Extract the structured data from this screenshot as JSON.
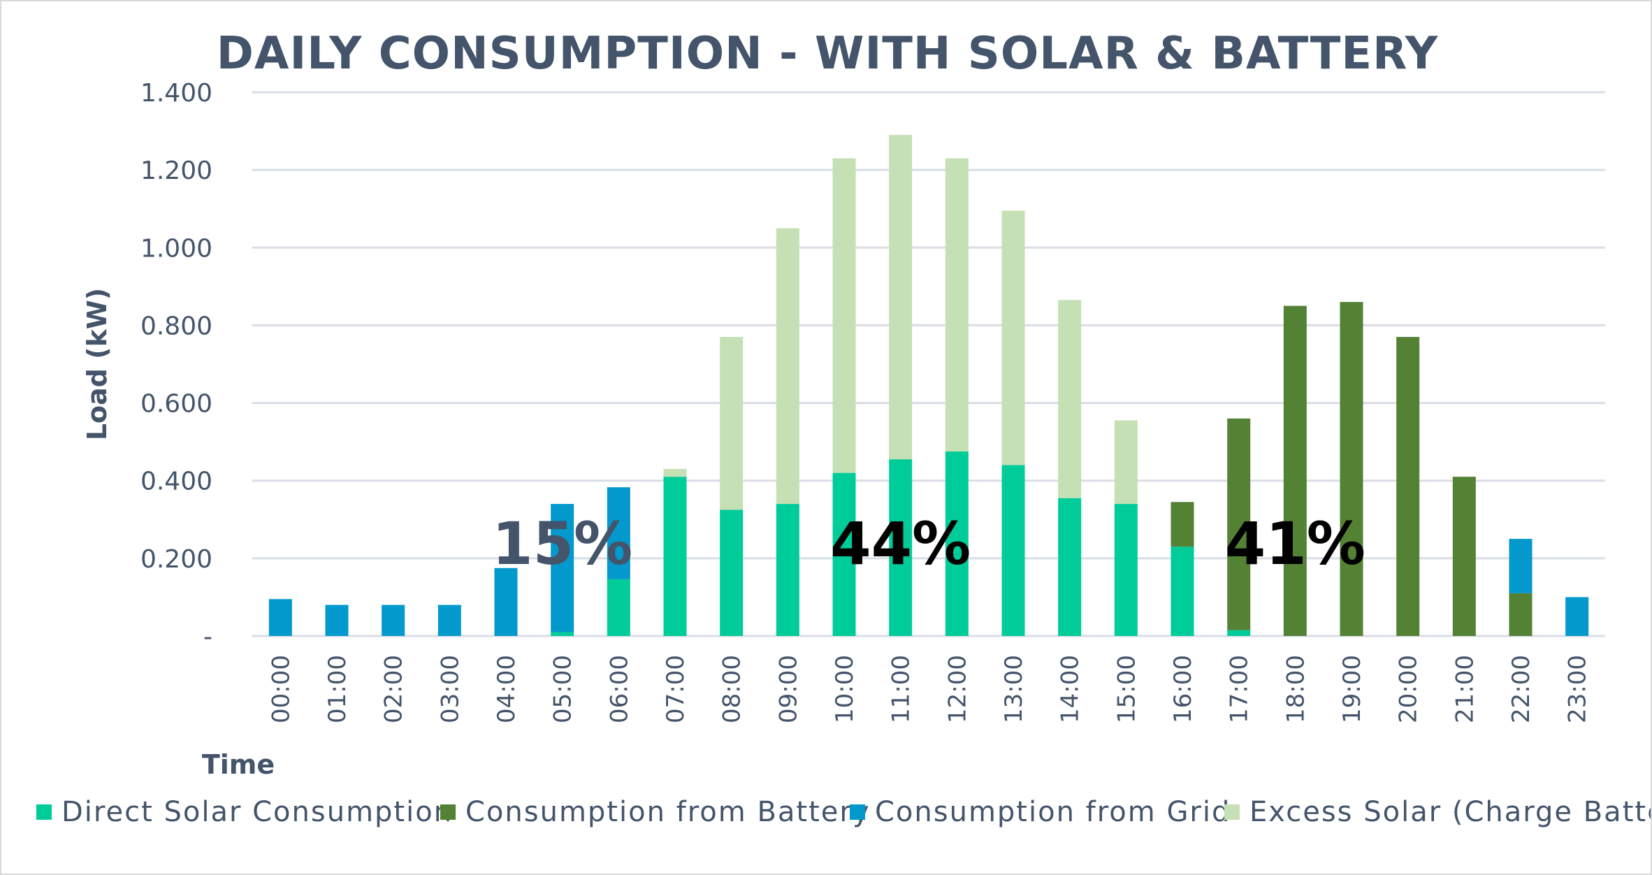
{
  "chart_data": {
    "type": "bar",
    "stacked": true,
    "title": "DAILY CONSUMPTION  - WITH SOLAR & BATTERY",
    "xlabel": "Time",
    "ylabel": "Load (kW)",
    "ylim": [
      0,
      1.4
    ],
    "yticks": [
      {
        "value": 0,
        "label": "-"
      },
      {
        "value": 0.2,
        "label": "0.200"
      },
      {
        "value": 0.4,
        "label": "0.400"
      },
      {
        "value": 0.6,
        "label": "0.600"
      },
      {
        "value": 0.8,
        "label": "0.800"
      },
      {
        "value": 1.0,
        "label": "1.000"
      },
      {
        "value": 1.2,
        "label": "1.200"
      },
      {
        "value": 1.4,
        "label": "1.400"
      }
    ],
    "grid": true,
    "legend_position": "bottom",
    "categories": [
      "00:00",
      "01:00",
      "02:00",
      "03:00",
      "04:00",
      "05:00",
      "06:00",
      "07:00",
      "08:00",
      "09:00",
      "10:00",
      "11:00",
      "12:00",
      "13:00",
      "14:00",
      "15:00",
      "16:00",
      "17:00",
      "18:00",
      "19:00",
      "20:00",
      "21:00",
      "22:00",
      "23:00"
    ],
    "series": [
      {
        "name": "Direct Solar Consumption",
        "color": "#00cc99",
        "values": [
          0,
          0,
          0,
          0,
          0,
          0.01,
          0.146,
          0.41,
          0.325,
          0.34,
          0.42,
          0.455,
          0.475,
          0.44,
          0.355,
          0.34,
          0.23,
          0.015,
          0,
          0,
          0,
          0,
          0,
          0
        ]
      },
      {
        "name": "Consumption from Battery",
        "color": "#548235",
        "values": [
          0,
          0,
          0,
          0,
          0,
          0,
          0,
          0,
          0,
          0,
          0,
          0,
          0,
          0,
          0,
          0,
          0.115,
          0.545,
          0.85,
          0.86,
          0.77,
          0.41,
          0.11,
          0
        ]
      },
      {
        "name": "Consumption from Grid",
        "color": "#0399cd",
        "values": [
          0.095,
          0.08,
          0.08,
          0.08,
          0.175,
          0.33,
          0.237,
          0,
          0,
          0,
          0,
          0,
          0,
          0,
          0,
          0,
          0,
          0,
          0,
          0,
          0,
          0,
          0.14,
          0.1
        ]
      },
      {
        "name": "Excess Solar (Charge Battery)",
        "color": "#c5e0b4",
        "values": [
          0,
          0,
          0,
          0,
          0,
          0,
          0,
          0.02,
          0.445,
          0.71,
          0.81,
          0.835,
          0.755,
          0.655,
          0.51,
          0.215,
          0,
          0,
          0,
          0,
          0,
          0,
          0,
          0
        ]
      }
    ],
    "annotations": [
      {
        "text": "15%",
        "color": "#44546a",
        "at_category": "05:00"
      },
      {
        "text": "44%",
        "color": "#000000",
        "at_category": "11:00"
      },
      {
        "text": "41%",
        "color": "#000000",
        "at_category": "18:00"
      }
    ],
    "gridline_color": "#d9dde6"
  }
}
